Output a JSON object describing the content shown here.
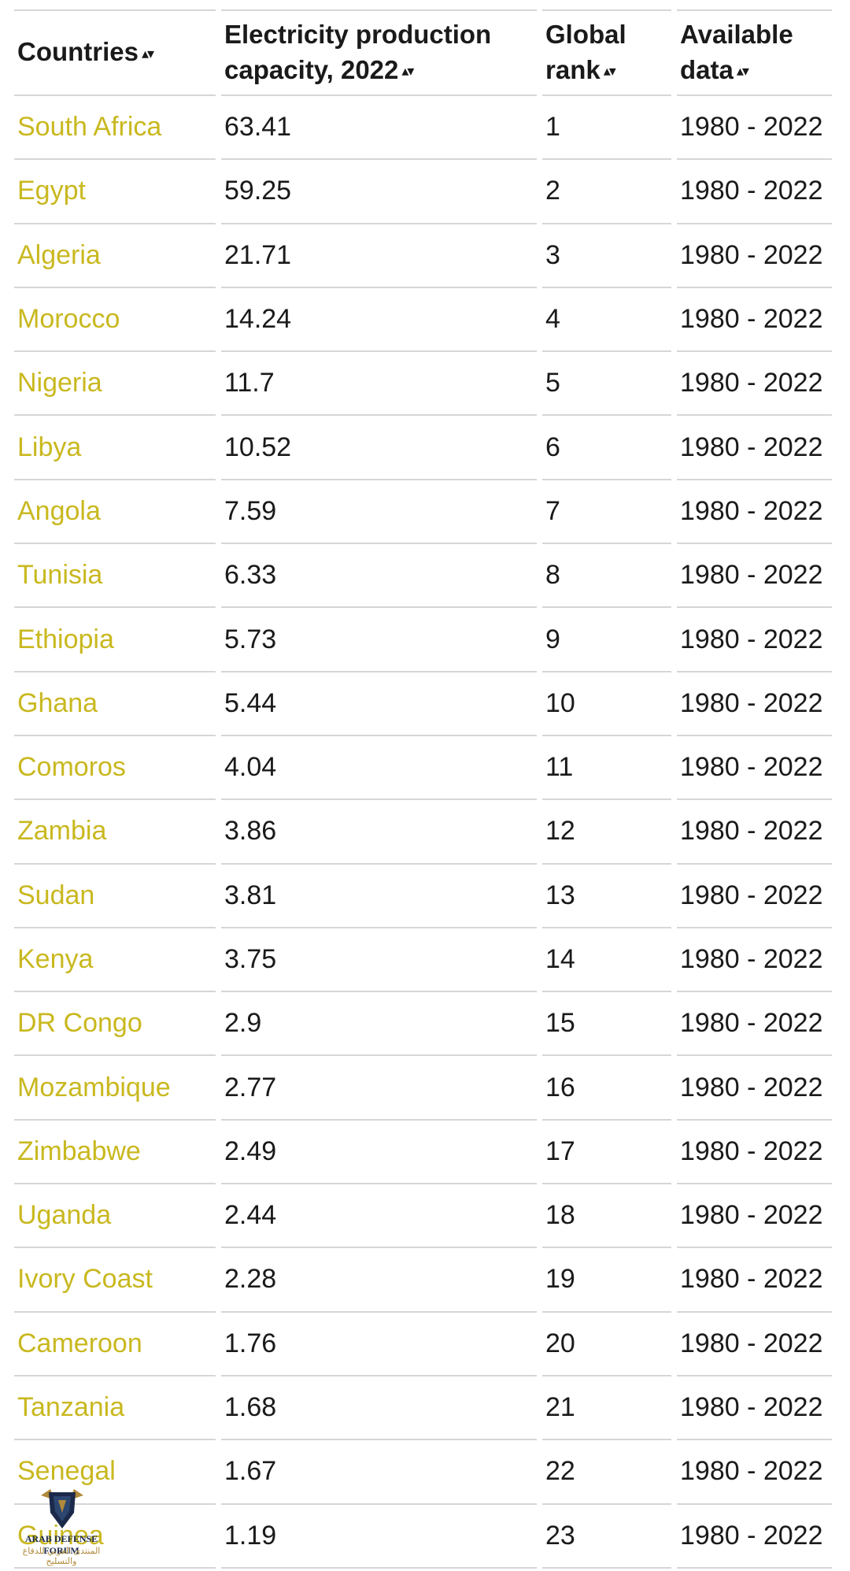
{
  "table": {
    "headers": {
      "country": "Countries",
      "capacity": "Electricity production capacity, 2022",
      "rank": "Global rank",
      "available": "Available data"
    },
    "sort_icon": "▴▾",
    "rows": [
      {
        "country": "South Africa",
        "capacity": "63.41",
        "rank": "1",
        "available": "1980 - 2022"
      },
      {
        "country": "Egypt",
        "capacity": "59.25",
        "rank": "2",
        "available": "1980 - 2022"
      },
      {
        "country": "Algeria",
        "capacity": "21.71",
        "rank": "3",
        "available": "1980 - 2022"
      },
      {
        "country": "Morocco",
        "capacity": "14.24",
        "rank": "4",
        "available": "1980 - 2022"
      },
      {
        "country": "Nigeria",
        "capacity": "11.7",
        "rank": "5",
        "available": "1980 - 2022"
      },
      {
        "country": "Libya",
        "capacity": "10.52",
        "rank": "6",
        "available": "1980 - 2022"
      },
      {
        "country": "Angola",
        "capacity": "7.59",
        "rank": "7",
        "available": "1980 - 2022"
      },
      {
        "country": "Tunisia",
        "capacity": "6.33",
        "rank": "8",
        "available": "1980 - 2022"
      },
      {
        "country": "Ethiopia",
        "capacity": "5.73",
        "rank": "9",
        "available": "1980 - 2022"
      },
      {
        "country": "Ghana",
        "capacity": "5.44",
        "rank": "10",
        "available": "1980 - 2022"
      },
      {
        "country": "Comoros",
        "capacity": "4.04",
        "rank": "11",
        "available": "1980 - 2022"
      },
      {
        "country": "Zambia",
        "capacity": "3.86",
        "rank": "12",
        "available": "1980 - 2022"
      },
      {
        "country": "Sudan",
        "capacity": "3.81",
        "rank": "13",
        "available": "1980 - 2022"
      },
      {
        "country": "Kenya",
        "capacity": "3.75",
        "rank": "14",
        "available": "1980 - 2022"
      },
      {
        "country": "DR Congo",
        "capacity": "2.9",
        "rank": "15",
        "available": "1980 - 2022"
      },
      {
        "country": "Mozambique",
        "capacity": "2.77",
        "rank": "16",
        "available": "1980 - 2022"
      },
      {
        "country": "Zimbabwe",
        "capacity": "2.49",
        "rank": "17",
        "available": "1980 - 2022"
      },
      {
        "country": "Uganda",
        "capacity": "2.44",
        "rank": "18",
        "available": "1980 - 2022"
      },
      {
        "country": "Ivory Coast",
        "capacity": "2.28",
        "rank": "19",
        "available": "1980 - 2022"
      },
      {
        "country": "Cameroon",
        "capacity": "1.76",
        "rank": "20",
        "available": "1980 - 2022"
      },
      {
        "country": "Tanzania",
        "capacity": "1.68",
        "rank": "21",
        "available": "1980 - 2022"
      },
      {
        "country": "Senegal",
        "capacity": "1.67",
        "rank": "22",
        "available": "1980 - 2022"
      },
      {
        "country": "Guinea",
        "capacity": "1.19",
        "rank": "23",
        "available": "1980 - 2022"
      }
    ]
  },
  "watermark": {
    "line1": "ARAB DEFENSE FORUM",
    "line2": "المنتدى العربي للدفاع والتسليح"
  },
  "colors": {
    "country_link": "#c9b81f",
    "divider": "#d6d6d6",
    "text": "#1a1a1a"
  }
}
